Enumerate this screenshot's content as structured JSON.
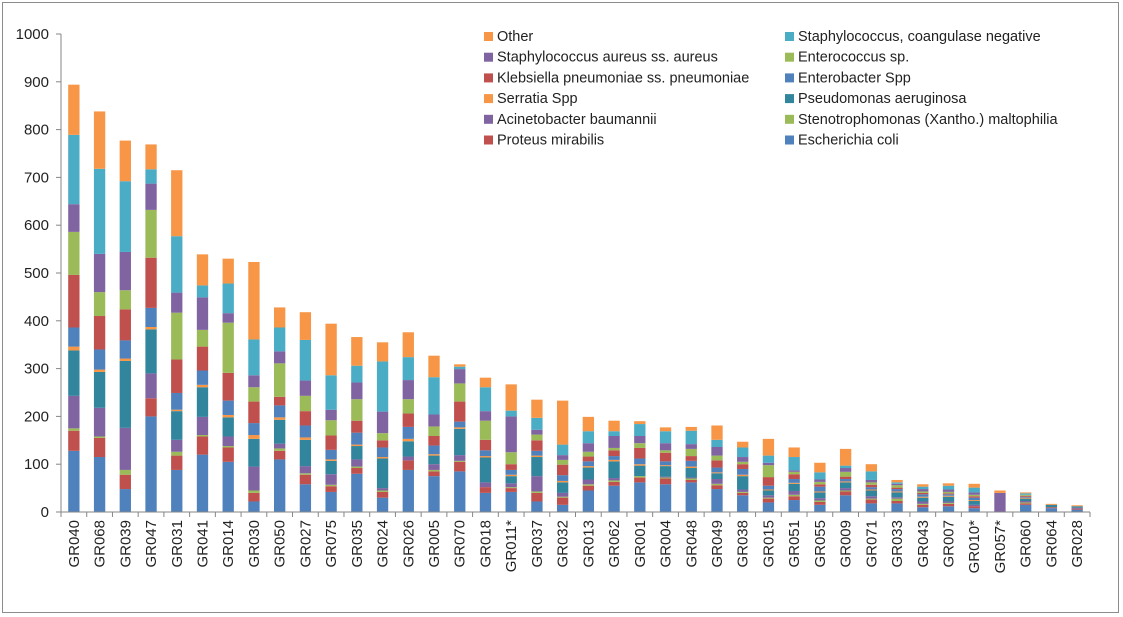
{
  "chart_data": {
    "type": "bar",
    "stacked": true,
    "title": "",
    "xlabel": "",
    "ylabel": "",
    "ylim": [
      0,
      1000
    ],
    "yticks": [
      0,
      100,
      200,
      300,
      400,
      500,
      600,
      700,
      800,
      900,
      1000
    ],
    "grid": false,
    "legend_position": "top-right",
    "categories": [
      "GR040",
      "GR068",
      "GR039",
      "GR047",
      "GR031",
      "GR041",
      "GR014",
      "GR030",
      "GR050",
      "GR027",
      "GR075",
      "GR035",
      "GR024",
      "GR026",
      "GR005",
      "GR070",
      "GR018",
      "GR011*",
      "GR037",
      "GR032",
      "GR013",
      "GR062",
      "GR001",
      "GR004",
      "GR048",
      "GR049",
      "GR038",
      "GR015",
      "GR051",
      "GR055",
      "GR009",
      "GR071",
      "GR033",
      "GR043",
      "GR007",
      "GR010*",
      "GR057*",
      "GR060",
      "GR064",
      "GR028"
    ],
    "legend_order": [
      "Other",
      "Staphylococcus, coangulase negative",
      "Staphylococcus aureus ss. aureus",
      "Enterococcus sp.",
      "Klebsiella pneumoniae ss. pneumoniae",
      "Enterobacter Spp",
      "Serratia Spp",
      "Pseudomonas aeruginosa",
      "Acinetobacter baumannii",
      "Stenotrophomonas (Xantho.) maltophilia",
      "Proteus mirabilis",
      "Escherichia coli"
    ],
    "series": [
      {
        "name": "Escherichia coli",
        "color": "#4F81BD",
        "values": [
          128,
          115,
          48,
          200,
          88,
          120,
          105,
          22,
          110,
          58,
          42,
          80,
          30,
          88,
          75,
          85,
          40,
          42,
          22,
          15,
          45,
          55,
          62,
          58,
          62,
          48,
          35,
          20,
          25,
          15,
          35,
          18,
          18,
          10,
          12,
          8,
          0,
          15,
          8,
          5
        ]
      },
      {
        "name": "Proteus mirabilis",
        "color": "#C0504D",
        "values": [
          42,
          40,
          30,
          38,
          30,
          38,
          30,
          18,
          18,
          20,
          12,
          12,
          12,
          20,
          10,
          20,
          12,
          8,
          18,
          15,
          10,
          8,
          10,
          12,
          5,
          8,
          5,
          8,
          8,
          6,
          8,
          8,
          5,
          5,
          5,
          4,
          0,
          3,
          2,
          2
        ]
      },
      {
        "name": "Stenotrophomonas (Xantho.) maltophilia",
        "color": "#9BBB59",
        "values": [
          5,
          3,
          10,
          0,
          8,
          3,
          3,
          5,
          5,
          3,
          3,
          3,
          3,
          0,
          3,
          2,
          0,
          2,
          3,
          2,
          3,
          3,
          3,
          2,
          3,
          3,
          2,
          2,
          3,
          3,
          2,
          2,
          5,
          2,
          2,
          0,
          0,
          2,
          0,
          0
        ]
      },
      {
        "name": "Acinetobacter baumannii",
        "color": "#8064A2",
        "values": [
          68,
          60,
          88,
          52,
          25,
          38,
          20,
          50,
          10,
          15,
          22,
          15,
          5,
          8,
          12,
          12,
          10,
          8,
          32,
          8,
          10,
          5,
          0,
          2,
          2,
          10,
          5,
          5,
          8,
          5,
          5,
          5,
          3,
          5,
          3,
          3,
          40,
          3,
          0,
          2
        ]
      },
      {
        "name": "Pseudomonas aeruginosa",
        "color": "#31859C",
        "values": [
          95,
          75,
          140,
          92,
          60,
          62,
          40,
          58,
          50,
          55,
          28,
          28,
          62,
          32,
          18,
          55,
          52,
          15,
          40,
          22,
          25,
          35,
          22,
          22,
          20,
          12,
          28,
          10,
          15,
          12,
          12,
          12,
          10,
          8,
          10,
          8,
          0,
          5,
          5,
          3
        ]
      },
      {
        "name": "Serratia Spp",
        "color": "#F79646",
        "values": [
          8,
          5,
          5,
          5,
          3,
          5,
          5,
          8,
          5,
          5,
          3,
          3,
          3,
          5,
          3,
          3,
          3,
          3,
          3,
          3,
          3,
          3,
          3,
          2,
          3,
          2,
          3,
          2,
          2,
          2,
          2,
          2,
          2,
          2,
          2,
          2,
          0,
          2,
          0,
          0
        ]
      },
      {
        "name": "Enterobacter Spp",
        "color": "#4F81BD",
        "values": [
          40,
          42,
          38,
          40,
          35,
          30,
          30,
          25,
          25,
          25,
          20,
          25,
          20,
          25,
          18,
          12,
          12,
          10,
          10,
          12,
          10,
          8,
          12,
          8,
          12,
          10,
          12,
          8,
          8,
          10,
          5,
          5,
          5,
          5,
          3,
          5,
          0,
          2,
          0,
          0
        ]
      },
      {
        "name": "Klebsiella pneumoniae ss. pneumoniae",
        "color": "#C0504D",
        "values": [
          110,
          70,
          65,
          105,
          70,
          50,
          58,
          45,
          18,
          30,
          30,
          25,
          15,
          28,
          20,
          42,
          22,
          12,
          22,
          22,
          10,
          12,
          22,
          18,
          10,
          15,
          10,
          18,
          10,
          5,
          5,
          5,
          3,
          3,
          2,
          3,
          0,
          2,
          0,
          0
        ]
      },
      {
        "name": "Enterococcus sp.",
        "color": "#9BBB59",
        "values": [
          90,
          50,
          40,
          100,
          98,
          35,
          105,
          30,
          70,
          32,
          32,
          45,
          15,
          30,
          20,
          38,
          40,
          25,
          12,
          10,
          10,
          5,
          10,
          5,
          15,
          10,
          5,
          25,
          5,
          5,
          10,
          5,
          5,
          3,
          3,
          3,
          0,
          2,
          0,
          0
        ]
      },
      {
        "name": "Staphylococcus aureus ss. aureus",
        "color": "#8064A2",
        "values": [
          58,
          80,
          80,
          55,
          42,
          68,
          20,
          25,
          25,
          32,
          22,
          35,
          45,
          40,
          25,
          30,
          20,
          75,
          10,
          10,
          18,
          25,
          15,
          15,
          10,
          18,
          10,
          5,
          3,
          5,
          8,
          5,
          3,
          5,
          5,
          5,
          0,
          0,
          0,
          0
        ]
      },
      {
        "name": "Staphylococcus, coangulase negative",
        "color": "#4BACC6",
        "values": [
          145,
          178,
          148,
          30,
          118,
          25,
          62,
          75,
          50,
          85,
          72,
          35,
          105,
          48,
          78,
          5,
          50,
          12,
          25,
          22,
          25,
          10,
          25,
          25,
          28,
          15,
          20,
          15,
          28,
          15,
          5,
          18,
          3,
          5,
          8,
          10,
          0,
          3,
          0,
          0
        ]
      },
      {
        "name": "Other",
        "color": "#F79646",
        "values": [
          105,
          120,
          85,
          52,
          138,
          65,
          52,
          162,
          42,
          58,
          108,
          60,
          40,
          52,
          45,
          5,
          20,
          55,
          38,
          92,
          30,
          22,
          6,
          8,
          8,
          30,
          12,
          35,
          20,
          20,
          35,
          15,
          5,
          5,
          5,
          8,
          5,
          2,
          2,
          2
        ]
      }
    ]
  }
}
